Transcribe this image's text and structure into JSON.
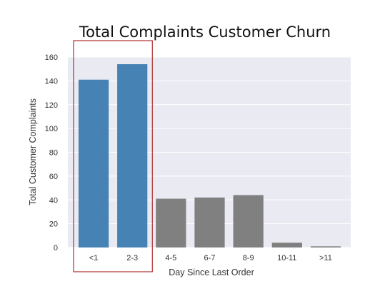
{
  "chart_data": {
    "type": "bar",
    "title": "Total Complaints Customer Churn",
    "xlabel": "Day Since Last Order",
    "ylabel": "Total Customer Complaints",
    "categories": [
      "<1",
      "2-3",
      "4-5",
      "6-7",
      "8-9",
      "10-11",
      ">11"
    ],
    "values": [
      141,
      154,
      41,
      42,
      44,
      4,
      1
    ],
    "ylim": [
      0,
      160
    ],
    "yticks": [
      "0",
      "20",
      "40",
      "60",
      "80",
      "100",
      "120",
      "140",
      "160"
    ],
    "grid": true,
    "highlighted_categories": [
      "<1",
      "2-3"
    ],
    "colors": {
      "highlight": "#4682b4",
      "default": "#808080",
      "background": "#eaeaf2",
      "grid": "#ffffff",
      "highlight_box": "#b03030"
    }
  }
}
